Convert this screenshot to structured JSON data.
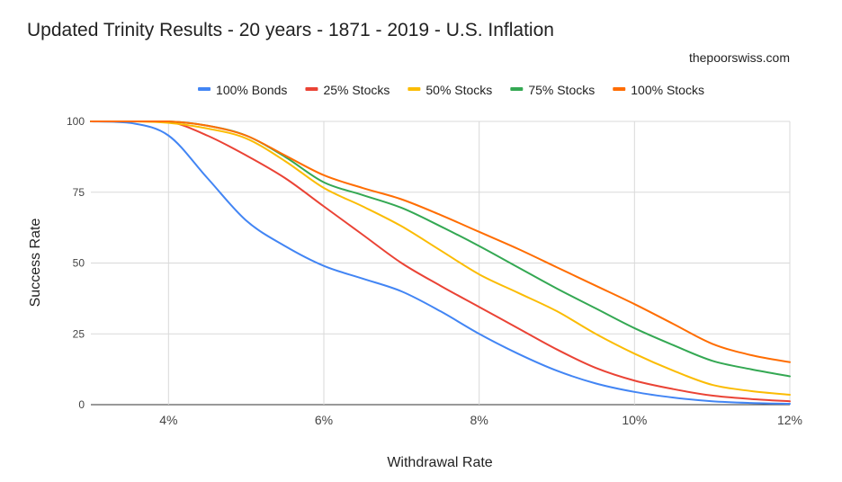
{
  "chart_data": {
    "type": "line",
    "title": "Updated Trinity Results - 20 years - 1871 - 2019 - U.S. Inflation",
    "subtitle": "thepoorswiss.com",
    "xlabel": "Withdrawal Rate",
    "ylabel": "Success Rate",
    "x": [
      3,
      3.5,
      4,
      4.5,
      5,
      5.5,
      6,
      6.5,
      7,
      7.5,
      8,
      8.5,
      9,
      9.5,
      10,
      10.5,
      11,
      11.5,
      12
    ],
    "xlim": [
      3,
      12
    ],
    "ylim": [
      0,
      100
    ],
    "xticks": [
      4,
      6,
      8,
      10,
      12
    ],
    "xtick_labels": [
      "4%",
      "6%",
      "8%",
      "10%",
      "12%"
    ],
    "yticks": [
      0,
      25,
      50,
      75,
      100
    ],
    "ytick_labels": [
      "0",
      "25",
      "50",
      "75",
      "100"
    ],
    "grid": true,
    "legend_position": "top",
    "series": [
      {
        "name": "100% Bonds",
        "color": "#4285f4",
        "values": [
          100,
          99.5,
          95,
          80,
          65,
          56,
          49,
          44.5,
          40,
          33,
          25,
          18,
          12,
          7.5,
          4.5,
          2.5,
          1.2,
          0.6,
          0.3
        ]
      },
      {
        "name": "25% Stocks",
        "color": "#ea4335",
        "values": [
          100,
          100,
          100,
          95,
          88,
          80,
          70,
          60,
          50,
          42,
          34.5,
          27,
          19.5,
          13,
          8.5,
          5.5,
          3.2,
          2,
          1.2
        ]
      },
      {
        "name": "50% Stocks",
        "color": "#fbbc04",
        "values": [
          100,
          100,
          99.5,
          97.5,
          94,
          86,
          76.5,
          70,
          63,
          54.5,
          46,
          39.5,
          33,
          25,
          18,
          12,
          7,
          4.8,
          3.5
        ]
      },
      {
        "name": "75% Stocks",
        "color": "#34a853",
        "values": [
          100,
          100,
          100,
          98.5,
          95,
          87.5,
          78.5,
          74,
          69.5,
          63,
          56,
          48.5,
          41,
          34,
          27,
          21,
          15.5,
          12.5,
          10
        ]
      },
      {
        "name": "100% Stocks",
        "color": "#ff6d01",
        "values": [
          100,
          100,
          100,
          98.5,
          95,
          88,
          81,
          76.5,
          72.5,
          67,
          61,
          55,
          48.5,
          42,
          35.5,
          28.5,
          21.5,
          17.5,
          15
        ]
      }
    ]
  }
}
